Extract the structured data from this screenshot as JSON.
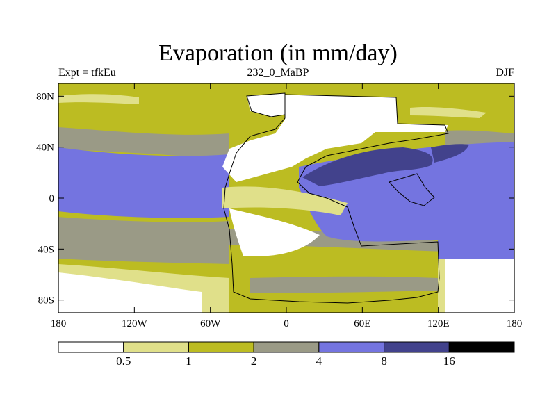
{
  "title": "Evaporation (in mm/day)",
  "subtitle_left": "Expt = tfkEu",
  "subtitle_center": "232_0_MaBP",
  "subtitle_right": "DJF",
  "map": {
    "lon_range": [
      -180,
      180
    ],
    "lat_range": [
      -90,
      90
    ],
    "x_ticks": [
      {
        "value": -180,
        "label": "180"
      },
      {
        "value": -120,
        "label": "120W"
      },
      {
        "value": -60,
        "label": "60W"
      },
      {
        "value": 0,
        "label": "0"
      },
      {
        "value": 60,
        "label": "60E"
      },
      {
        "value": 120,
        "label": "120E"
      },
      {
        "value": 180,
        "label": "180"
      }
    ],
    "y_ticks": [
      {
        "value": 80,
        "label": "80N"
      },
      {
        "value": 40,
        "label": "40N"
      },
      {
        "value": 0,
        "label": "0"
      },
      {
        "value": -40,
        "label": "40S"
      },
      {
        "value": -80,
        "label": "80S"
      }
    ]
  },
  "colorbar": {
    "levels": [
      "0.5",
      "1",
      "2",
      "4",
      "8",
      "16"
    ],
    "colors": [
      "#ffffff",
      "#e0e08a",
      "#bcbc22",
      "#9a9a86",
      "#7474e0",
      "#42428c",
      "#000000"
    ]
  }
}
